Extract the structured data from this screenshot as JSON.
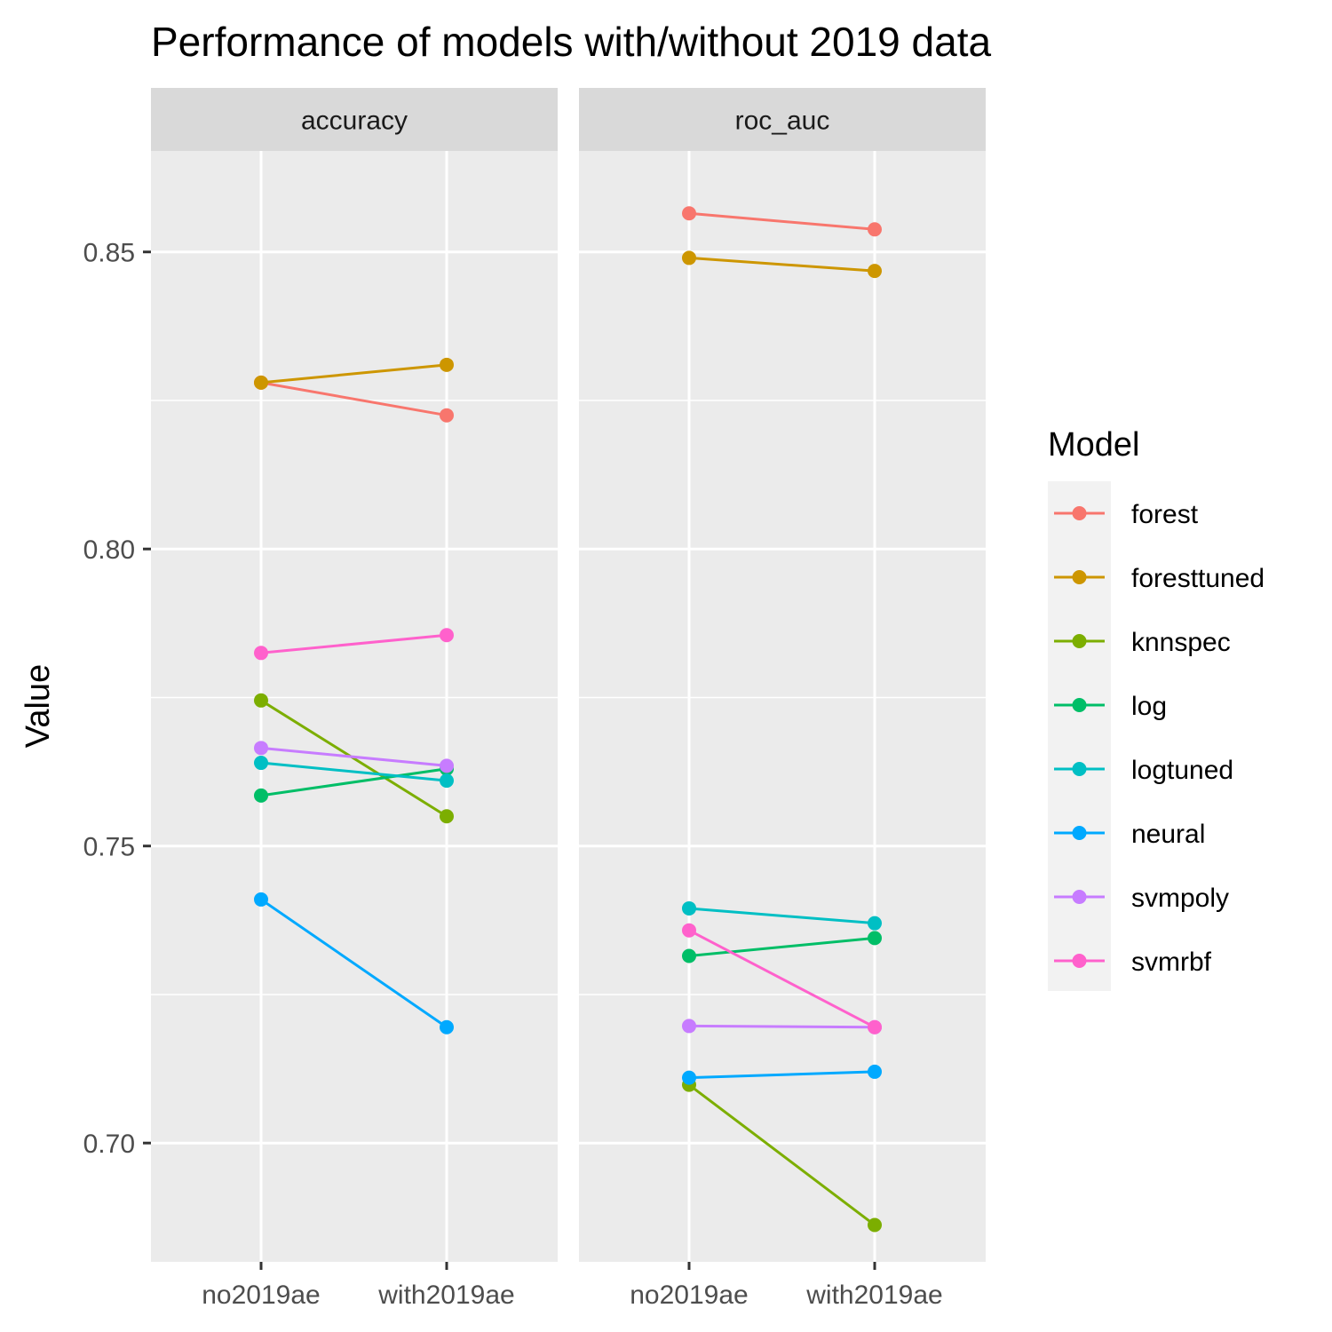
{
  "chart_data": {
    "type": "line",
    "title": "Performance of models with/without 2019 data",
    "xlabel": "",
    "ylabel": "Value",
    "ylim": [
      0.68,
      0.867
    ],
    "yticks": [
      0.7,
      0.75,
      0.8,
      0.85
    ],
    "ytick_labels": [
      "0.70",
      "0.75",
      "0.80",
      "0.85"
    ],
    "grid": true,
    "legend_position": "right",
    "x": [
      "no2019ae",
      "with2019ae"
    ],
    "panels": [
      {
        "name": "accuracy",
        "series": [
          {
            "name": "forest",
            "values": [
              0.828,
              0.8225
            ]
          },
          {
            "name": "foresttuned",
            "values": [
              0.828,
              0.831
            ]
          },
          {
            "name": "knnspec",
            "values": [
              0.7745,
              0.755
            ]
          },
          {
            "name": "log",
            "values": [
              0.7585,
              0.763
            ]
          },
          {
            "name": "logtuned",
            "values": [
              0.764,
              0.761
            ]
          },
          {
            "name": "neural",
            "values": [
              0.741,
              0.7195
            ]
          },
          {
            "name": "svmpoly",
            "values": [
              0.7665,
              0.7635
            ]
          },
          {
            "name": "svmrbf",
            "values": [
              0.7825,
              0.7855
            ]
          }
        ]
      },
      {
        "name": "roc_auc",
        "series": [
          {
            "name": "forest",
            "values": [
              0.8565,
              0.8538
            ]
          },
          {
            "name": "foresttuned",
            "values": [
              0.849,
              0.8468
            ]
          },
          {
            "name": "knnspec",
            "values": [
              0.7098,
              0.6862
            ]
          },
          {
            "name": "log",
            "values": [
              0.7315,
              0.7345
            ]
          },
          {
            "name": "logtuned",
            "values": [
              0.7395,
              0.737
            ]
          },
          {
            "name": "neural",
            "values": [
              0.711,
              0.712
            ]
          },
          {
            "name": "svmpoly",
            "values": [
              0.7197,
              0.7195
            ]
          },
          {
            "name": "svmrbf",
            "values": [
              0.7358,
              0.7195
            ]
          }
        ]
      }
    ]
  },
  "legend": {
    "title": "Model",
    "items": [
      {
        "name": "forest",
        "color": "#F8766D"
      },
      {
        "name": "foresttuned",
        "color": "#CD9600"
      },
      {
        "name": "knnspec",
        "color": "#7CAE00"
      },
      {
        "name": "log",
        "color": "#00BE67"
      },
      {
        "name": "logtuned",
        "color": "#00BFC4"
      },
      {
        "name": "neural",
        "color": "#00A9FF"
      },
      {
        "name": "svmpoly",
        "color": "#C77CFF"
      },
      {
        "name": "svmrbf",
        "color": "#FF61CC"
      }
    ]
  }
}
